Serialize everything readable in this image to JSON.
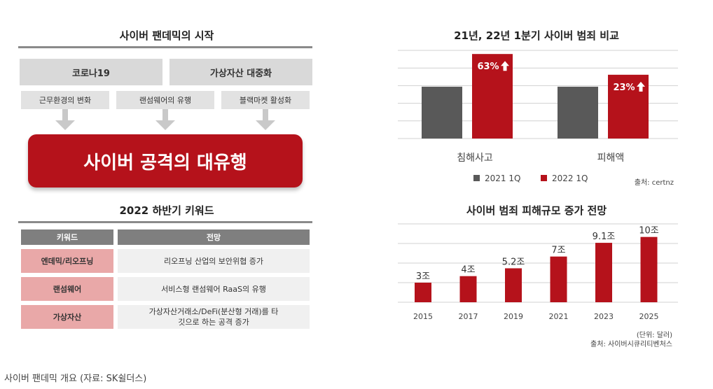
{
  "left": {
    "title1": "사이버 팬데믹의 시작",
    "causes": [
      "코로나19",
      "가상자산 대중화"
    ],
    "sub_causes": [
      "근무환경의 변화",
      "랜섬웨어의 유행",
      "블랙마켓 활성화"
    ],
    "result": "사이버 공격의 대유행",
    "title2": "2022 하반기 키워드",
    "table": {
      "headers": [
        "키워드",
        "전망"
      ],
      "rows": [
        {
          "keyword": "엔데믹/리오프닝",
          "outlook": "리오프닝 산업의 보안위협 증가"
        },
        {
          "keyword": "랜섬웨어",
          "outlook": "서비스형 랜섬웨어 RaaS의 유행"
        },
        {
          "keyword": "가상자산",
          "outlook": "가상자산거래소/DeFi(분산형 거래)를 타깃으로 하는 공격 증가"
        }
      ]
    }
  },
  "chart_data": [
    {
      "type": "bar",
      "title": "21년, 22년 1분기 사이버 범죄 비교",
      "categories": [
        "침해사고",
        "피해액"
      ],
      "series": [
        {
          "name": "2021 1Q",
          "color": "#595959",
          "values": [
            100,
            100
          ]
        },
        {
          "name": "2022 1Q",
          "color": "#b5121b",
          "values": [
            163,
            123
          ]
        }
      ],
      "annotations": [
        "63%",
        "23%"
      ],
      "source": "출처: certnz",
      "ylim": [
        0,
        170
      ],
      "grid": true,
      "legend": "bottom"
    },
    {
      "type": "bar",
      "title": "사이버 범죄 피해규모 증가 전망",
      "categories": [
        "2015",
        "2017",
        "2019",
        "2021",
        "2023",
        "2025"
      ],
      "values": [
        3,
        4,
        5.2,
        7,
        9.1,
        10
      ],
      "labels": [
        "3조",
        "4조",
        "5.2조",
        "7조",
        "9.1조",
        "10조"
      ],
      "color": "#b5121b",
      "ylim": [
        0,
        12
      ],
      "grid": true,
      "unit": "(단위: 달러)",
      "source": "출처: 사이버시큐리티벤처스"
    }
  ],
  "caption": "사이버 팬데믹 개요 (자료: SK쉴더스)"
}
